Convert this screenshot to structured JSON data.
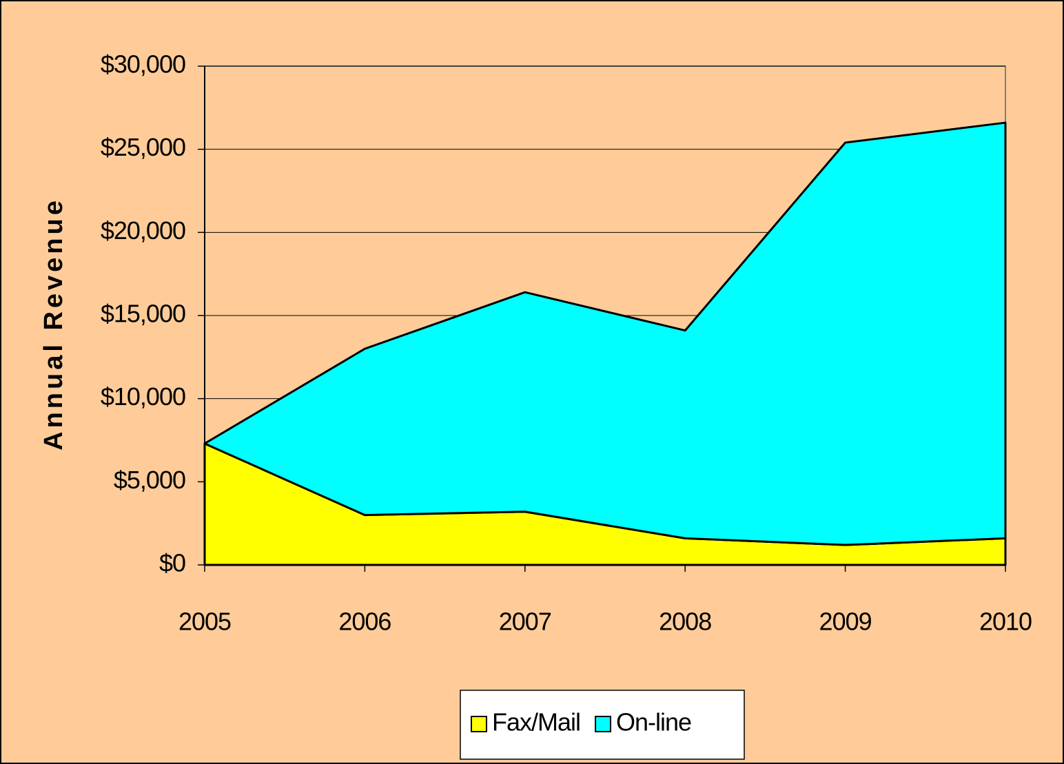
{
  "chart_data": {
    "type": "stacked_area",
    "y_label": "Annual Revenue",
    "categories": [
      "2005",
      "2006",
      "2007",
      "2008",
      "2009",
      "2010"
    ],
    "series": [
      {
        "name": "Fax/Mail",
        "color": "#ffff00",
        "values": [
          7300,
          3000,
          3200,
          1600,
          1200,
          1600
        ]
      },
      {
        "name": "On-line",
        "color": "#00ffff",
        "values": [
          0,
          10000,
          13200,
          12500,
          24200,
          25000
        ]
      }
    ],
    "ylim": [
      0,
      30000
    ],
    "yticks": [
      {
        "value": 0,
        "label": "$0"
      },
      {
        "value": 5000,
        "label": "$5,000"
      },
      {
        "value": 10000,
        "label": "$10,000"
      },
      {
        "value": 15000,
        "label": "$15,000"
      },
      {
        "value": 20000,
        "label": "$20,000"
      },
      {
        "value": 25000,
        "label": "$25,000"
      },
      {
        "value": 30000,
        "label": "$30,000"
      }
    ],
    "grid": true,
    "legend": "bottom"
  }
}
